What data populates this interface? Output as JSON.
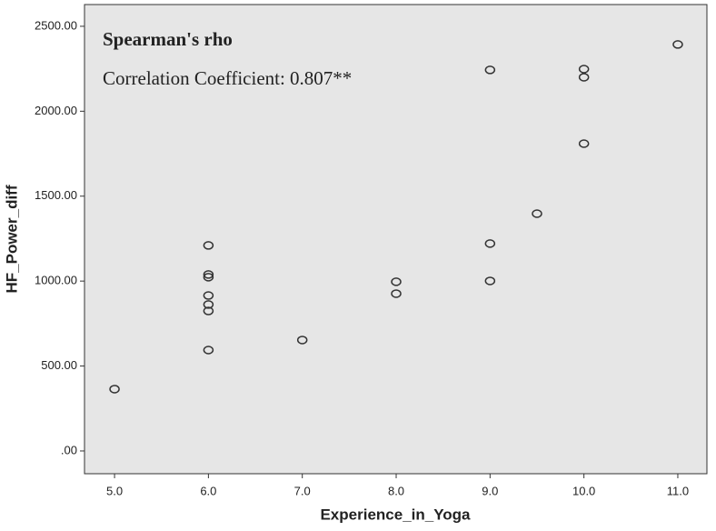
{
  "chart_data": {
    "type": "scatter",
    "annotations": [
      "Spearman's rho",
      "Correlation Coefficient: 0.807**"
    ],
    "x_label": "Experience_in_Yoga",
    "y_label": "HF_Power_diff",
    "x": [
      5,
      6,
      6,
      6,
      6,
      6,
      6,
      6,
      7,
      8,
      8,
      9,
      9,
      9,
      9.5,
      10,
      10,
      10,
      11
    ],
    "values": [
      364,
      1210,
      1039,
      1023,
      915,
      862,
      824,
      594,
      653,
      996,
      926,
      2243,
      1221,
      1001,
      1397,
      2248,
      2200,
      1809,
      2393
    ],
    "color": "#333333",
    "background": "#e6e6e6",
    "xlim": [
      4.68,
      11.31
    ],
    "xticks": [
      {
        "value": 5,
        "label": "5.0"
      },
      {
        "value": 6,
        "label": "6.0"
      },
      {
        "value": 7,
        "label": "7.0"
      },
      {
        "value": 8,
        "label": "8.0"
      },
      {
        "value": 9,
        "label": "9.0"
      },
      {
        "value": 10,
        "label": "10.0"
      },
      {
        "value": 11,
        "label": "11.0"
      }
    ],
    "ylim": [
      -134,
      2628
    ],
    "yticks": [
      {
        "value": 0,
        "label": ".00"
      },
      {
        "value": 500,
        "label": "500.00"
      },
      {
        "value": 1000,
        "label": "1000.00"
      },
      {
        "value": 1500,
        "label": "1500.00"
      },
      {
        "value": 2000,
        "label": "2000.00"
      },
      {
        "value": 2500,
        "label": "2500.00"
      }
    ],
    "grid": false
  }
}
